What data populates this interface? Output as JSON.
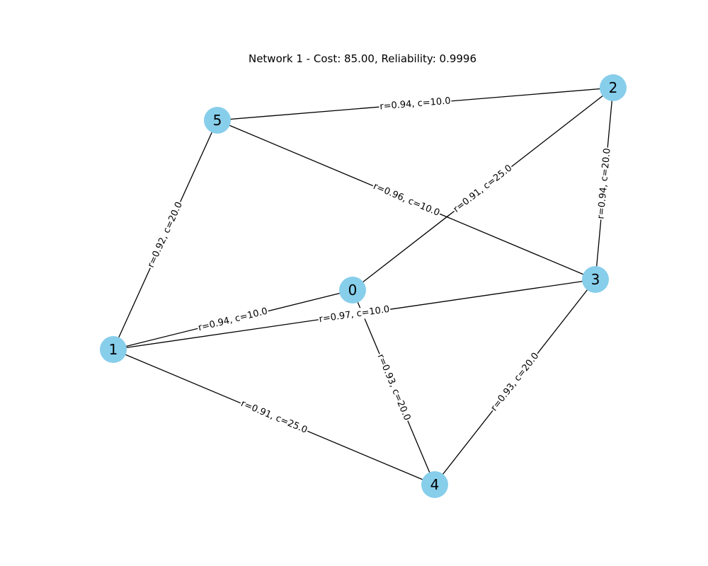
{
  "title": "Network 1 - Cost: 85.00, Reliability: 0.9996",
  "node_color": "#87ceeb",
  "edge_color": "#000000",
  "nodes": [
    {
      "id": "0",
      "label": "0"
    },
    {
      "id": "1",
      "label": "1"
    },
    {
      "id": "2",
      "label": "2"
    },
    {
      "id": "3",
      "label": "3"
    },
    {
      "id": "4",
      "label": "4"
    },
    {
      "id": "5",
      "label": "5"
    }
  ],
  "edges": [
    {
      "source": "5",
      "target": "2",
      "label": "r=0.94, c=10.0"
    },
    {
      "source": "5",
      "target": "3",
      "label": "r=0.96, c=10.0"
    },
    {
      "source": "5",
      "target": "1",
      "label": "r=0.92, c=20.0"
    },
    {
      "source": "0",
      "target": "2",
      "label": "r=0.91, c=25.0"
    },
    {
      "source": "2",
      "target": "3",
      "label": "r=0.94, c=20.0"
    },
    {
      "source": "1",
      "target": "0",
      "label": "r=0.94, c=10.0"
    },
    {
      "source": "1",
      "target": "3",
      "label": "r=0.97, c=10.0"
    },
    {
      "source": "0",
      "target": "4",
      "label": "r=0.93, c=20.0"
    },
    {
      "source": "3",
      "target": "4",
      "label": "r=0.93, c=20.0"
    },
    {
      "source": "1",
      "target": "4",
      "label": "r=0.91, c=25.0"
    }
  ]
}
